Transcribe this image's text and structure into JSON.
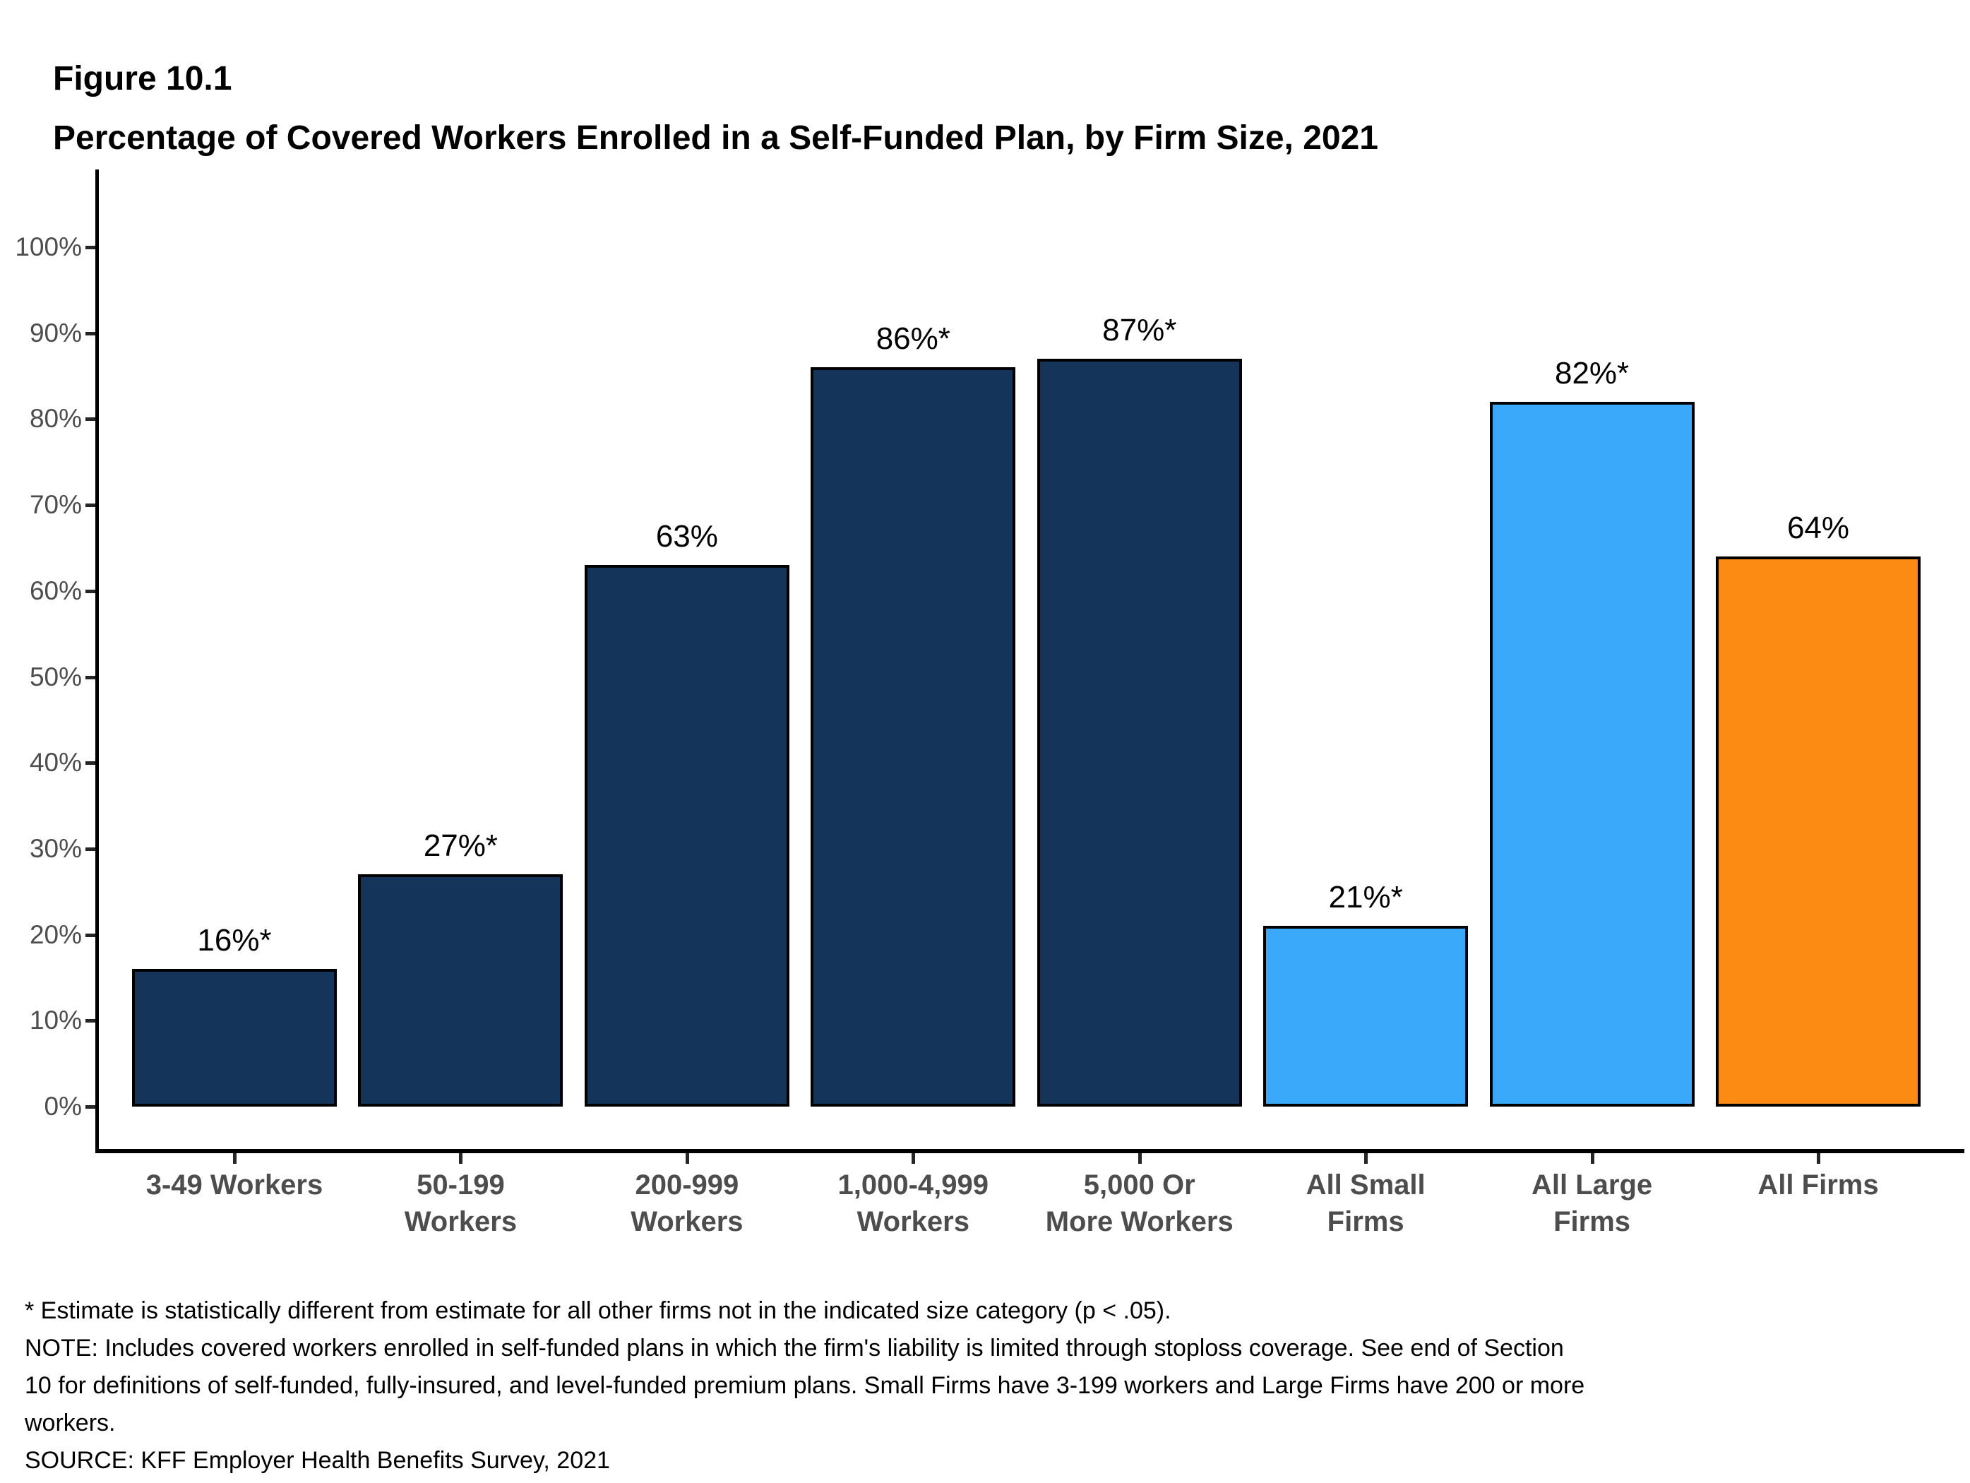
{
  "header": {
    "figure_label": "Figure 10.1",
    "title": "Percentage of Covered Workers Enrolled in a Self-Funded Plan, by Firm Size, 2021"
  },
  "chart_data": {
    "type": "bar",
    "title": "Percentage of Covered Workers Enrolled in a Self-Funded Plan, by Firm Size, 2021",
    "xlabel": "",
    "ylabel": "",
    "ylim": [
      0,
      100
    ],
    "grid": false,
    "legend": "none",
    "y_tick_labels": [
      "0%",
      "10%",
      "20%",
      "30%",
      "40%",
      "50%",
      "60%",
      "70%",
      "80%",
      "90%",
      "100%"
    ],
    "categories": [
      "3-49 Workers",
      "50-199 Workers",
      "200-999 Workers",
      "1,000-4,999 Workers",
      "5,000 Or More Workers",
      "All Small Firms",
      "All Large Firms",
      "All Firms"
    ],
    "category_label_lines": [
      [
        "3-49 Workers"
      ],
      [
        "50-199",
        "Workers"
      ],
      [
        "200-999",
        "Workers"
      ],
      [
        "1,000-4,999",
        "Workers"
      ],
      [
        "5,000 Or",
        "More Workers"
      ],
      [
        "All Small",
        "Firms"
      ],
      [
        "All Large",
        "Firms"
      ],
      [
        "All Firms"
      ]
    ],
    "values": [
      16,
      27,
      63,
      86,
      87,
      21,
      82,
      64
    ],
    "value_labels": [
      "16%*",
      "27%*",
      "63%",
      "86%*",
      "87%*",
      "21%*",
      "82%*",
      "64%"
    ],
    "bar_colors": [
      "#143559",
      "#143559",
      "#143559",
      "#143559",
      "#143559",
      "#3BA9FA",
      "#3BA9FA",
      "#FB8B13"
    ]
  },
  "colors": {
    "navy": "#143559",
    "light_blue": "#3BA9FA",
    "orange": "#FB8B13",
    "axis_text": "#4D4D4D",
    "axis_line": "#000000"
  },
  "footnotes": {
    "lines": [
      "* Estimate is statistically different from estimate for all other firms not in the indicated size category (p < .05).",
      "NOTE: Includes covered workers enrolled in self-funded plans in which the firm's liability is limited through stoploss coverage. See end of Section",
      "10 for definitions of self-funded, fully-insured, and level-funded premium plans. Small Firms have 3-199 workers and Large Firms have 200 or more",
      "workers.",
      "SOURCE: KFF Employer Health Benefits Survey, 2021"
    ]
  }
}
